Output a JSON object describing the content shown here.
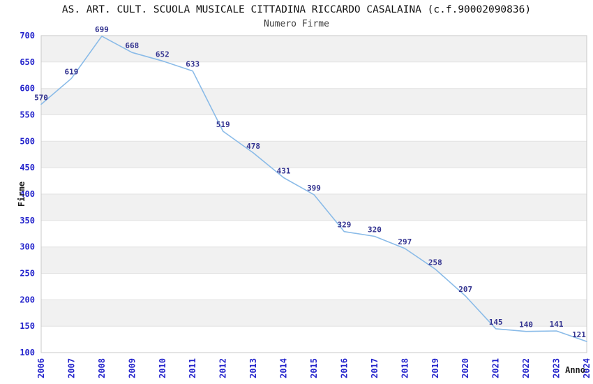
{
  "header": {
    "title": "AS. ART. CULT. SCUOLA MUSICALE CITTADINA RICCARDO CASALAINA (c.f.90002090836)",
    "subtitle": "Numero Firme"
  },
  "chart_data": {
    "type": "line",
    "title": "AS. ART. CULT. SCUOLA MUSICALE CITTADINA RICCARDO CASALAINA (c.f.90002090836)",
    "subtitle": "Numero Firme",
    "x": [
      2006,
      2007,
      2008,
      2009,
      2010,
      2011,
      2012,
      2013,
      2014,
      2015,
      2016,
      2017,
      2018,
      2019,
      2020,
      2021,
      2022,
      2023,
      2024
    ],
    "series": [
      {
        "name": "Numero Firme",
        "values": [
          570,
          619,
          699,
          668,
          652,
          633,
          519,
          478,
          431,
          399,
          329,
          320,
          297,
          258,
          207,
          145,
          140,
          141,
          121
        ]
      }
    ],
    "xlabel": "Anno",
    "ylabel": "Firme",
    "ylim": [
      100,
      700
    ],
    "ytick_step": 50,
    "grid": true,
    "band_fill": "alternating-horizontal",
    "legend": "none",
    "colors": {
      "line": "#8abbe8",
      "data_label": "#333390",
      "tick_label": "#2424cc",
      "band": "#f1f1f1",
      "gridline": "#e2e2e2",
      "plot_border": "#c9c9c9",
      "title": "#111111",
      "subtitle": "#3c3c3c",
      "axis_title": "#1c1c1c",
      "plot_background": "#ffffff"
    }
  }
}
